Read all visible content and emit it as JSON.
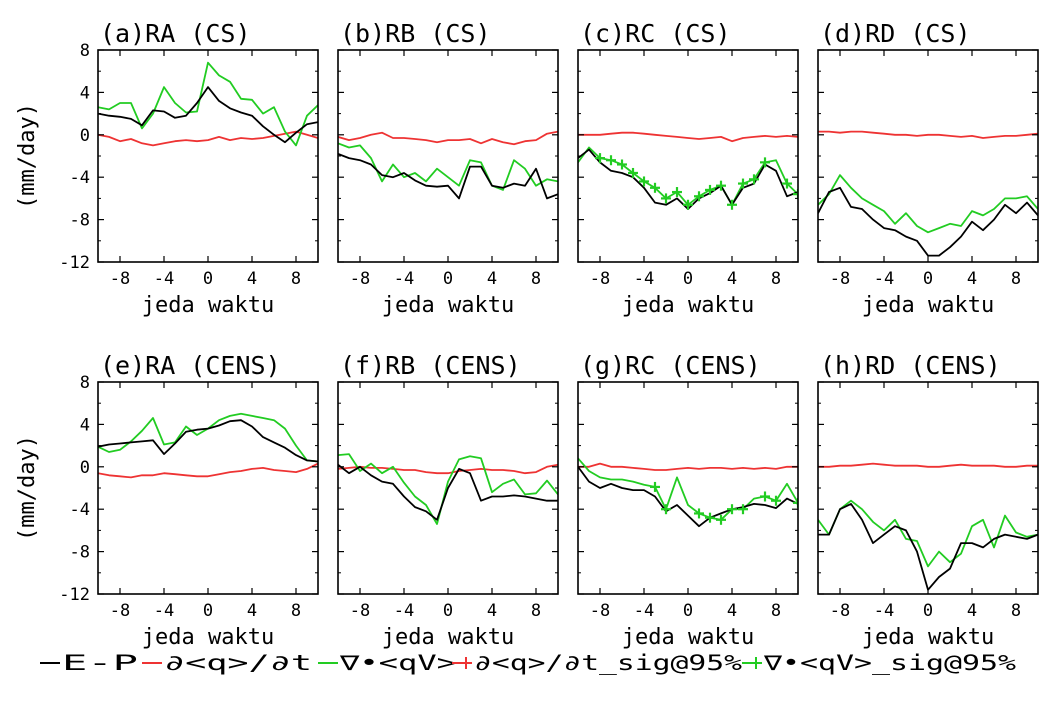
{
  "figure": {
    "ylabel": "(mm/day)",
    "xlabel": "jeda waktu",
    "xlim": [
      -10,
      10
    ],
    "ylim": [
      -12,
      8
    ],
    "xticks": [
      "-8",
      "-4",
      "0",
      "4",
      "8"
    ],
    "yticks": [
      "8",
      "4",
      "0",
      "-4",
      "-8",
      "-12"
    ]
  },
  "legend": [
    {
      "label": "E-P",
      "color": "#000000",
      "marker": false
    },
    {
      "label": "∂<q>/∂t",
      "color": "#ee3333",
      "marker": false
    },
    {
      "label": "∇•<qV>",
      "color": "#22cc22",
      "marker": false
    },
    {
      "label": "∂<q>/∂t_sig@95%",
      "color": "#ee3333",
      "marker": true
    },
    {
      "label": "∇•<qV>_sig@95%",
      "color": "#22cc22",
      "marker": true
    }
  ],
  "colors": {
    "ep": "#000000",
    "dqdt": "#ee3333",
    "div": "#22cc22"
  },
  "chart_data": [
    {
      "type": "line",
      "title": "(a)RA (CS)",
      "xlabel": "jeda waktu",
      "ylabel": "(mm/day)",
      "xlim": [
        -10,
        10
      ],
      "ylim": [
        -12,
        8
      ],
      "x": [
        -10,
        -9,
        -8,
        -7,
        -6,
        -5,
        -4,
        -3,
        -2,
        -1,
        0,
        1,
        2,
        3,
        4,
        5,
        6,
        7,
        8,
        9,
        10
      ],
      "series": [
        {
          "name": "E-P",
          "values": [
            2.0,
            1.8,
            1.7,
            1.5,
            0.9,
            2.3,
            2.2,
            1.6,
            1.8,
            3.0,
            4.5,
            3.2,
            2.5,
            2.1,
            1.8,
            0.8,
            0.0,
            -0.7,
            0.2,
            1.0,
            1.2
          ]
        },
        {
          "name": "∂<q>/∂t",
          "values": [
            0.0,
            -0.2,
            -0.6,
            -0.4,
            -0.8,
            -1.0,
            -0.8,
            -0.6,
            -0.5,
            -0.6,
            -0.5,
            -0.2,
            -0.5,
            -0.3,
            -0.4,
            -0.3,
            -0.1,
            0.1,
            0.3,
            0.0,
            -0.3
          ]
        },
        {
          "name": "∇•<qV>",
          "values": [
            2.6,
            2.4,
            3.0,
            3.0,
            0.6,
            2.0,
            4.5,
            3.0,
            2.1,
            2.2,
            6.8,
            5.6,
            5.0,
            3.4,
            3.3,
            2.0,
            2.6,
            0.3,
            -1.0,
            1.8,
            2.8
          ]
        }
      ],
      "sig_points": []
    },
    {
      "type": "line",
      "title": "(b)RB (CS)",
      "xlabel": "jeda waktu",
      "ylabel": "(mm/day)",
      "xlim": [
        -10,
        10
      ],
      "ylim": [
        -12,
        8
      ],
      "x": [
        -10,
        -9,
        -8,
        -7,
        -6,
        -5,
        -4,
        -3,
        -2,
        -1,
        0,
        1,
        2,
        3,
        4,
        5,
        6,
        7,
        8,
        9,
        10
      ],
      "series": [
        {
          "name": "E-P",
          "values": [
            -1.8,
            -2.2,
            -2.4,
            -2.8,
            -3.8,
            -4.0,
            -3.6,
            -4.3,
            -4.8,
            -4.9,
            -4.8,
            -6.0,
            -3.0,
            -3.0,
            -4.8,
            -5.0,
            -4.6,
            -4.8,
            -3.2,
            -6.0,
            -5.6
          ]
        },
        {
          "name": "∂<q>/∂t",
          "values": [
            -0.2,
            -0.5,
            -0.3,
            0.0,
            0.2,
            -0.3,
            -0.3,
            -0.4,
            -0.5,
            -0.7,
            -0.5,
            -0.5,
            -0.4,
            -0.8,
            -0.4,
            -0.7,
            -0.9,
            -0.6,
            -0.5,
            0.1,
            0.3
          ]
        },
        {
          "name": "∇•<qV>",
          "values": [
            -0.8,
            -1.2,
            -1.0,
            -2.2,
            -4.4,
            -2.8,
            -4.0,
            -3.6,
            -4.4,
            -3.2,
            -4.0,
            -4.8,
            -2.4,
            -2.6,
            -4.8,
            -5.2,
            -2.4,
            -3.2,
            -4.8,
            -4.2,
            -4.4
          ]
        }
      ],
      "sig_points": []
    },
    {
      "type": "line",
      "title": "(c)RC (CS)",
      "xlabel": "jeda waktu",
      "ylabel": "(mm/day)",
      "xlim": [
        -10,
        10
      ],
      "ylim": [
        -12,
        8
      ],
      "x": [
        -10,
        -9,
        -8,
        -7,
        -6,
        -5,
        -4,
        -3,
        -2,
        -1,
        0,
        1,
        2,
        3,
        4,
        5,
        6,
        7,
        8,
        9,
        10
      ],
      "series": [
        {
          "name": "E-P",
          "values": [
            -2.2,
            -1.4,
            -2.6,
            -3.4,
            -3.6,
            -4.0,
            -5.0,
            -6.4,
            -6.6,
            -6.0,
            -7.0,
            -6.0,
            -5.5,
            -4.8,
            -6.6,
            -5.0,
            -4.6,
            -2.8,
            -3.4,
            -5.8,
            -5.4
          ]
        },
        {
          "name": "∂<q>/∂t",
          "values": [
            0.0,
            0.0,
            0.0,
            0.1,
            0.2,
            0.2,
            0.1,
            0.0,
            -0.1,
            -0.2,
            -0.3,
            -0.4,
            -0.3,
            -0.2,
            -0.6,
            -0.3,
            -0.2,
            -0.1,
            -0.2,
            -0.1,
            -0.2
          ]
        },
        {
          "name": "∇•<qV>",
          "values": [
            -2.6,
            -1.2,
            -2.2,
            -2.4,
            -2.8,
            -3.6,
            -4.4,
            -5.0,
            -6.0,
            -5.4,
            -6.6,
            -5.8,
            -5.2,
            -4.8,
            -6.6,
            -4.6,
            -4.2,
            -2.6,
            -2.4,
            -4.6,
            -5.6
          ]
        }
      ],
      "sig_points": [
        {
          "series": "∇•<qV>",
          "x": [
            -8,
            -7,
            -6,
            -5,
            -4,
            -3,
            -2,
            -1,
            0,
            1,
            2,
            3,
            4,
            5,
            6,
            7,
            9,
            10
          ]
        }
      ]
    },
    {
      "type": "line",
      "title": "(d)RD (CS)",
      "xlabel": "jeda waktu",
      "ylabel": "(mm/day)",
      "xlim": [
        -10,
        10
      ],
      "ylim": [
        -12,
        8
      ],
      "x": [
        -10,
        -9,
        -8,
        -7,
        -6,
        -5,
        -4,
        -3,
        -2,
        -1,
        0,
        1,
        2,
        3,
        4,
        5,
        6,
        7,
        8,
        9,
        10
      ],
      "series": [
        {
          "name": "E-P",
          "values": [
            -7.4,
            -5.4,
            -5.0,
            -6.8,
            -7.0,
            -8.0,
            -8.8,
            -9.0,
            -9.6,
            -10.0,
            -11.4,
            -11.4,
            -10.6,
            -9.6,
            -8.2,
            -9.0,
            -8.0,
            -6.6,
            -7.4,
            -6.4,
            -7.6
          ]
        },
        {
          "name": "∂<q>/∂t",
          "values": [
            0.3,
            0.3,
            0.2,
            0.3,
            0.3,
            0.2,
            0.1,
            0.0,
            0.0,
            -0.1,
            0.0,
            0.0,
            -0.1,
            -0.2,
            -0.1,
            -0.3,
            -0.2,
            -0.1,
            -0.1,
            0.0,
            0.1
          ]
        },
        {
          "name": "∇•<qV>",
          "values": [
            -6.6,
            -5.6,
            -3.8,
            -5.0,
            -6.0,
            -6.6,
            -7.2,
            -8.4,
            -7.4,
            -8.6,
            -9.2,
            -8.8,
            -8.4,
            -8.6,
            -7.2,
            -7.6,
            -7.0,
            -6.0,
            -6.0,
            -5.8,
            -7.0
          ]
        }
      ],
      "sig_points": []
    },
    {
      "type": "line",
      "title": "(e)RA (CENS)",
      "xlabel": "jeda waktu",
      "ylabel": "(mm/day)",
      "xlim": [
        -10,
        10
      ],
      "ylim": [
        -12,
        8
      ],
      "x": [
        -10,
        -9,
        -8,
        -7,
        -6,
        -5,
        -4,
        -3,
        -2,
        -1,
        0,
        1,
        2,
        3,
        4,
        5,
        6,
        7,
        8,
        9,
        10
      ],
      "series": [
        {
          "name": "E-P",
          "values": [
            1.9,
            2.1,
            2.2,
            2.3,
            2.4,
            2.5,
            1.2,
            2.2,
            3.3,
            3.5,
            3.6,
            3.9,
            4.3,
            4.4,
            3.8,
            2.8,
            2.3,
            1.8,
            1.1,
            0.6,
            0.5
          ]
        },
        {
          "name": "∂<q>/∂t",
          "values": [
            -0.6,
            -0.8,
            -0.9,
            -1.0,
            -0.8,
            -0.8,
            -0.6,
            -0.7,
            -0.8,
            -0.9,
            -0.9,
            -0.7,
            -0.5,
            -0.4,
            -0.2,
            -0.1,
            -0.3,
            -0.4,
            -0.5,
            -0.2,
            0.3
          ]
        },
        {
          "name": "∇•<qV>",
          "values": [
            1.9,
            1.4,
            1.6,
            2.4,
            3.4,
            4.6,
            2.1,
            2.3,
            3.8,
            3.0,
            3.6,
            4.4,
            4.8,
            5.0,
            4.8,
            4.6,
            4.4,
            3.6,
            2.0,
            0.6,
            0.5
          ]
        }
      ],
      "sig_points": []
    },
    {
      "type": "line",
      "title": "(f)RB (CENS)",
      "xlabel": "jeda waktu",
      "ylabel": "(mm/day)",
      "xlim": [
        -10,
        10
      ],
      "ylim": [
        -12,
        8
      ],
      "x": [
        -10,
        -9,
        -8,
        -7,
        -6,
        -5,
        -4,
        -3,
        -2,
        -1,
        0,
        1,
        2,
        3,
        4,
        5,
        6,
        7,
        8,
        9,
        10
      ],
      "series": [
        {
          "name": "E-P",
          "values": [
            0.2,
            -0.6,
            0.0,
            -0.8,
            -1.4,
            -1.6,
            -2.8,
            -3.8,
            -4.2,
            -5.0,
            -2.0,
            -0.2,
            -0.6,
            -3.2,
            -2.8,
            -2.8,
            -2.7,
            -2.8,
            -3.0,
            -3.2,
            -3.2
          ]
        },
        {
          "name": "∂<q>/∂t",
          "values": [
            -0.2,
            -0.1,
            0.0,
            -0.1,
            -0.1,
            -0.2,
            -0.3,
            -0.3,
            -0.5,
            -0.6,
            -0.6,
            -0.4,
            -0.3,
            -0.2,
            -0.3,
            -0.3,
            -0.4,
            -0.6,
            -0.5,
            0.0,
            0.2
          ]
        },
        {
          "name": "∇•<qV>",
          "values": [
            1.1,
            1.2,
            -0.4,
            0.3,
            -0.6,
            0.0,
            -1.5,
            -2.8,
            -3.6,
            -5.4,
            -1.4,
            0.7,
            1.0,
            0.8,
            -2.4,
            -1.6,
            -1.2,
            -2.6,
            -2.5,
            -1.3,
            -2.6
          ]
        }
      ],
      "sig_points": []
    },
    {
      "type": "line",
      "title": "(g)RC (CENS)",
      "xlabel": "jeda waktu",
      "ylabel": "(mm/day)",
      "xlim": [
        -10,
        10
      ],
      "ylim": [
        -12,
        8
      ],
      "x": [
        -10,
        -9,
        -8,
        -7,
        -6,
        -5,
        -4,
        -3,
        -2,
        -1,
        0,
        1,
        2,
        3,
        4,
        5,
        6,
        7,
        8,
        9,
        10
      ],
      "series": [
        {
          "name": "E-P",
          "values": [
            0.0,
            -1.4,
            -2.0,
            -1.6,
            -2.0,
            -2.2,
            -2.2,
            -2.8,
            -4.2,
            -3.6,
            -4.6,
            -5.6,
            -4.8,
            -4.4,
            -4.0,
            -3.8,
            -3.5,
            -3.6,
            -3.9,
            -3.0,
            -3.5
          ]
        },
        {
          "name": "∂<q>/∂t",
          "values": [
            0.0,
            0.0,
            0.3,
            0.0,
            0.0,
            -0.1,
            -0.2,
            -0.3,
            -0.3,
            -0.2,
            -0.1,
            -0.2,
            -0.1,
            -0.1,
            -0.2,
            -0.1,
            -0.2,
            -0.1,
            -0.2,
            0.0,
            0.0
          ]
        },
        {
          "name": "∇•<qV>",
          "values": [
            0.8,
            -0.4,
            -1.0,
            -1.2,
            -1.2,
            -1.4,
            -1.7,
            -1.9,
            -4.0,
            -1.0,
            -3.6,
            -4.4,
            -4.8,
            -5.0,
            -4.0,
            -4.0,
            -3.0,
            -2.8,
            -3.2,
            -1.6,
            -3.4
          ]
        }
      ],
      "sig_points": [
        {
          "series": "∇•<qV>",
          "x": [
            -3,
            -2,
            1,
            2,
            3,
            4,
            5,
            7,
            8,
            10
          ]
        }
      ]
    },
    {
      "type": "line",
      "title": "(h)RD (CENS)",
      "xlabel": "jeda waktu",
      "ylabel": "(mm/day)",
      "xlim": [
        -10,
        10
      ],
      "ylim": [
        -12,
        8
      ],
      "x": [
        -10,
        -9,
        -8,
        -7,
        -6,
        -5,
        -4,
        -3,
        -2,
        -1,
        0,
        1,
        2,
        3,
        4,
        5,
        6,
        7,
        8,
        9,
        10
      ],
      "series": [
        {
          "name": "E-P",
          "values": [
            -6.4,
            -6.4,
            -4.0,
            -3.5,
            -5.0,
            -7.2,
            -6.4,
            -5.6,
            -6.0,
            -8.0,
            -11.6,
            -10.4,
            -9.6,
            -7.2,
            -7.2,
            -7.6,
            -6.8,
            -6.4,
            -6.6,
            -6.8,
            -6.4
          ]
        },
        {
          "name": "∂<q>/∂t",
          "values": [
            0.0,
            0.0,
            0.1,
            0.1,
            0.2,
            0.3,
            0.2,
            0.1,
            0.1,
            0.1,
            0.0,
            0.0,
            0.1,
            0.2,
            0.1,
            0.1,
            0.1,
            0.0,
            0.0,
            0.1,
            0.1
          ]
        },
        {
          "name": "∇•<qV>",
          "values": [
            -5.0,
            -6.4,
            -4.0,
            -3.2,
            -4.0,
            -5.2,
            -6.0,
            -5.0,
            -6.8,
            -7.0,
            -9.4,
            -8.0,
            -9.0,
            -8.2,
            -5.6,
            -5.0,
            -7.6,
            -4.6,
            -6.2,
            -6.6,
            -6.4
          ]
        }
      ],
      "sig_points": []
    }
  ]
}
